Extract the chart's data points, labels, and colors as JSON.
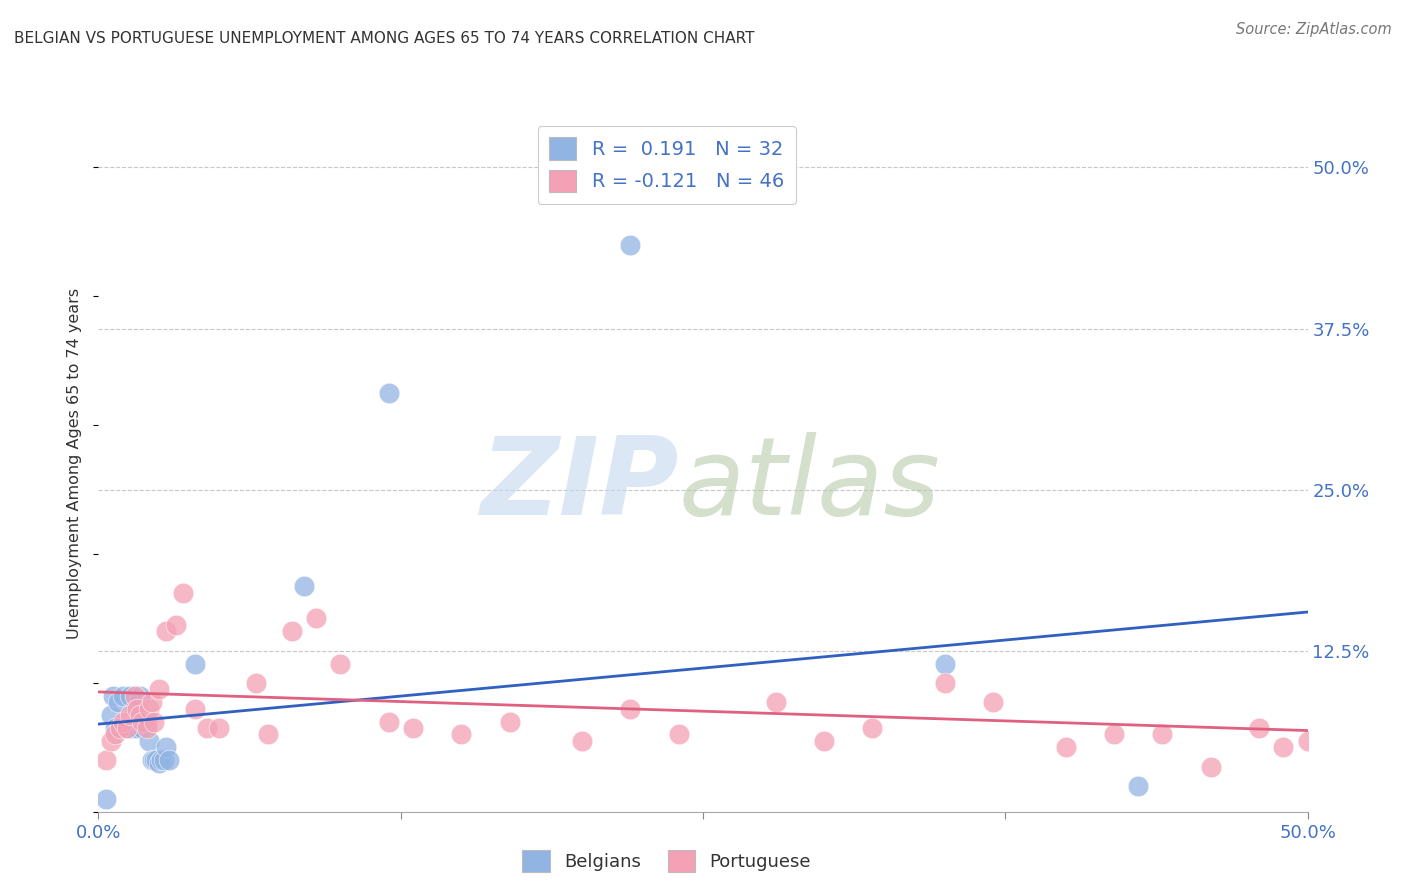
{
  "title": "BELGIAN VS PORTUGUESE UNEMPLOYMENT AMONG AGES 65 TO 74 YEARS CORRELATION CHART",
  "source": "Source: ZipAtlas.com",
  "ylabel": "Unemployment Among Ages 65 to 74 years",
  "xlim": [
    0.0,
    0.5
  ],
  "ylim": [
    0.0,
    0.54
  ],
  "xtick_positions": [
    0.0,
    0.125,
    0.25,
    0.375,
    0.5
  ],
  "xticklabels": [
    "0.0%",
    "",
    "",
    "",
    "50.0%"
  ],
  "ytick_positions": [
    0.0,
    0.125,
    0.25,
    0.375,
    0.5
  ],
  "ytick_labels_right": [
    "",
    "12.5%",
    "25.0%",
    "37.5%",
    "50.0%"
  ],
  "belgian_color": "#92b4e3",
  "portuguese_color": "#f4a0b5",
  "trendline_belgian_color": "#3060c0",
  "trendline_portuguese_color": "#e06080",
  "legend_R_belgian": "0.191",
  "legend_N_belgian": "32",
  "legend_R_portuguese": "-0.121",
  "legend_N_portuguese": "46",
  "belgian_x": [
    0.003,
    0.005,
    0.006,
    0.007,
    0.008,
    0.009,
    0.01,
    0.011,
    0.012,
    0.013,
    0.014,
    0.015,
    0.016,
    0.017,
    0.018,
    0.019,
    0.02,
    0.021,
    0.022,
    0.023,
    0.024,
    0.025,
    0.026,
    0.027,
    0.028,
    0.029,
    0.04,
    0.085,
    0.12,
    0.22,
    0.35,
    0.43
  ],
  "belgian_y": [
    0.01,
    0.075,
    0.09,
    0.065,
    0.085,
    0.065,
    0.09,
    0.065,
    0.065,
    0.09,
    0.065,
    0.08,
    0.065,
    0.09,
    0.065,
    0.07,
    0.07,
    0.055,
    0.04,
    0.04,
    0.04,
    0.038,
    0.04,
    0.04,
    0.05,
    0.04,
    0.115,
    0.175,
    0.325,
    0.44,
    0.115,
    0.02
  ],
  "portuguese_x": [
    0.003,
    0.005,
    0.007,
    0.009,
    0.01,
    0.012,
    0.013,
    0.015,
    0.016,
    0.017,
    0.018,
    0.02,
    0.021,
    0.022,
    0.023,
    0.025,
    0.028,
    0.032,
    0.035,
    0.04,
    0.045,
    0.05,
    0.065,
    0.07,
    0.08,
    0.09,
    0.1,
    0.12,
    0.13,
    0.15,
    0.17,
    0.2,
    0.22,
    0.24,
    0.28,
    0.3,
    0.32,
    0.35,
    0.37,
    0.4,
    0.42,
    0.44,
    0.46,
    0.48,
    0.49,
    0.5
  ],
  "portuguese_y": [
    0.04,
    0.055,
    0.06,
    0.065,
    0.07,
    0.065,
    0.075,
    0.09,
    0.08,
    0.075,
    0.07,
    0.065,
    0.08,
    0.085,
    0.07,
    0.095,
    0.14,
    0.145,
    0.17,
    0.08,
    0.065,
    0.065,
    0.1,
    0.06,
    0.14,
    0.15,
    0.115,
    0.07,
    0.065,
    0.06,
    0.07,
    0.055,
    0.08,
    0.06,
    0.085,
    0.055,
    0.065,
    0.1,
    0.085,
    0.05,
    0.06,
    0.06,
    0.035,
    0.065,
    0.05,
    0.055
  ],
  "belgian_trend_x": [
    0.0,
    0.5
  ],
  "belgian_trend_y": [
    0.068,
    0.155
  ],
  "portuguese_trend_x": [
    0.0,
    0.5
  ],
  "portuguese_trend_y": [
    0.093,
    0.063
  ]
}
